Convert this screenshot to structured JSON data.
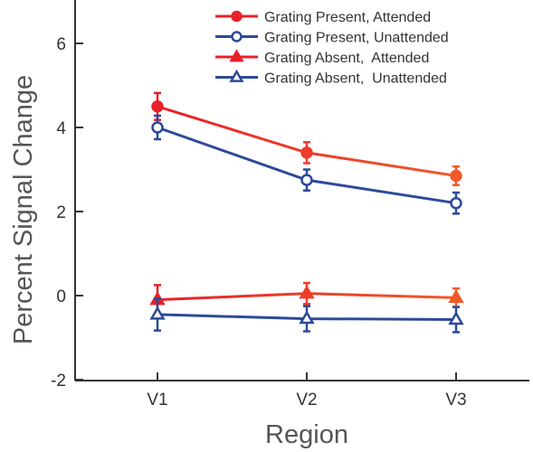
{
  "chart_data": {
    "type": "line",
    "title": "",
    "xlabel": "Region",
    "ylabel": "Percent Signal Change",
    "categories": [
      "V1",
      "V2",
      "V3"
    ],
    "yticks": [
      "-2",
      "0",
      "2",
      "4",
      "6"
    ],
    "ytick_values": [
      -2,
      0,
      2,
      4,
      6
    ],
    "ylim": [
      -2,
      7
    ],
    "grid": false,
    "legend_position": "top-right",
    "series": [
      {
        "name": "Grating Present, Attended",
        "values": [
          4.5,
          3.4,
          2.85
        ],
        "errors": [
          0.32,
          0.25,
          0.22
        ],
        "color_start": "#e8202a",
        "color_end": "#f05a28",
        "marker": "circle",
        "filled": true
      },
      {
        "name": "Grating Present, Unattended",
        "values": [
          4.0,
          2.75,
          2.2
        ],
        "errors": [
          0.28,
          0.25,
          0.25
        ],
        "color_start": "#2c4a9a",
        "color_end": "#2c4a9a",
        "marker": "circle",
        "filled": false
      },
      {
        "name": "Grating Absent,  Attended",
        "values": [
          -0.1,
          0.05,
          -0.05
        ],
        "errors": [
          0.35,
          0.25,
          0.22
        ],
        "color_start": "#e8202a",
        "color_end": "#f05a28",
        "marker": "triangle",
        "filled": true
      },
      {
        "name": "Grating Absent,  Unattended",
        "values": [
          -0.45,
          -0.55,
          -0.57
        ],
        "errors": [
          0.38,
          0.3,
          0.3
        ],
        "color_start": "#2c4a9a",
        "color_end": "#2c4a9a",
        "marker": "triangle",
        "filled": false
      }
    ]
  }
}
